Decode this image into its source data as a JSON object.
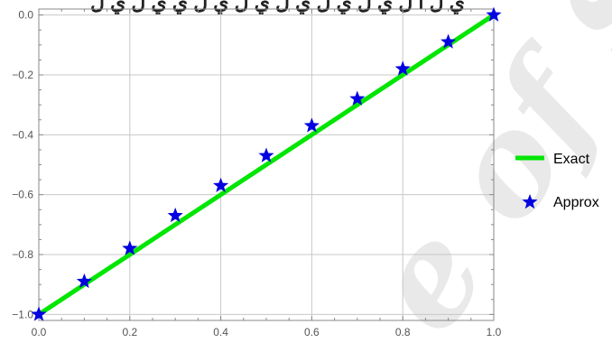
{
  "header_fragment": "ي ل ا ل ي ل ي ل ي ل ي ل ي ل ي ي ل ي ل",
  "watermark_text": "e of Sl",
  "colors": {
    "exact_line": "#00e600",
    "approx_marker": "#0000e0",
    "frame": "#888888",
    "grid": "#c8c8c8",
    "tick_text": "#555555"
  },
  "chart_data": {
    "type": "line",
    "title": "",
    "xlabel": "",
    "ylabel": "",
    "xlim": [
      0,
      1
    ],
    "ylim": [
      -1.02,
      0.02
    ],
    "grid": true,
    "legend_position": "right",
    "x_ticks": [
      "0.0",
      "0.2",
      "0.4",
      "0.6",
      "0.8",
      "1.0"
    ],
    "y_ticks": [
      "0.0",
      "−0.2",
      "−0.4",
      "−0.6",
      "−0.8",
      "−1.0"
    ],
    "series": [
      {
        "name": "Exact",
        "style": "line",
        "x": [
          0.0,
          1.0
        ],
        "y": [
          -1.0,
          0.0
        ]
      },
      {
        "name": "Approx",
        "style": "star-marker",
        "x": [
          0.0,
          0.1,
          0.2,
          0.3,
          0.4,
          0.5,
          0.6,
          0.7,
          0.8,
          0.9,
          1.0
        ],
        "y": [
          -1.0,
          -0.89,
          -0.78,
          -0.67,
          -0.57,
          -0.47,
          -0.37,
          -0.28,
          -0.18,
          -0.09,
          0.0
        ]
      }
    ]
  }
}
